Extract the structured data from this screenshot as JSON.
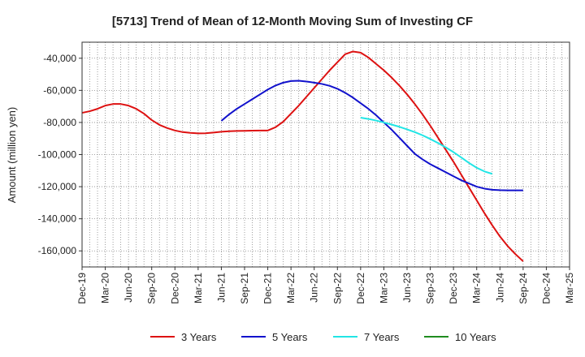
{
  "chart_data": {
    "type": "line",
    "title": "[5713]  Trend of Mean of 12-Month Moving Sum of Investing CF",
    "xlabel": "",
    "ylabel": "Amount (million yen)",
    "ylim": [
      -170000,
      -30000
    ],
    "yticks": [
      -40000,
      -60000,
      -80000,
      -100000,
      -120000,
      -140000,
      -160000
    ],
    "ytick_labels": [
      "-40,000",
      "-60,000",
      "-80,000",
      "-100,000",
      "-120,000",
      "-140,000",
      "-160,000"
    ],
    "xticks": [
      "Dec-19",
      "Mar-20",
      "Jun-20",
      "Sep-20",
      "Dec-20",
      "Mar-21",
      "Jun-21",
      "Sep-21",
      "Dec-21",
      "Mar-22",
      "Jun-22",
      "Sep-22",
      "Dec-22",
      "Mar-23",
      "Jun-23",
      "Sep-23",
      "Dec-23",
      "Mar-24",
      "Jun-24",
      "Sep-24",
      "Dec-24",
      "Mar-25"
    ],
    "grid": true,
    "legend_position": "bottom",
    "series": [
      {
        "name": "3 Years",
        "color": "#dd1111",
        "points": [
          [
            "Dec-19",
            -74000
          ],
          [
            "Jan-20",
            -73000
          ],
          [
            "Feb-20",
            -71500
          ],
          [
            "Mar-20",
            -69500
          ],
          [
            "Apr-20",
            -68500
          ],
          [
            "May-20",
            -68500
          ],
          [
            "Jun-20",
            -69500
          ],
          [
            "Jul-20",
            -71500
          ],
          [
            "Aug-20",
            -74500
          ],
          [
            "Sep-20",
            -78500
          ],
          [
            "Oct-20",
            -81500
          ],
          [
            "Nov-20",
            -83500
          ],
          [
            "Dec-20",
            -85000
          ],
          [
            "Jan-21",
            -86000
          ],
          [
            "Feb-21",
            -86500
          ],
          [
            "Mar-21",
            -86800
          ],
          [
            "Apr-21",
            -86700
          ],
          [
            "May-21",
            -86300
          ],
          [
            "Jun-21",
            -85800
          ],
          [
            "Jul-21",
            -85500
          ],
          [
            "Aug-21",
            -85300
          ],
          [
            "Sep-21",
            -85200
          ],
          [
            "Oct-21",
            -85100
          ],
          [
            "Nov-21",
            -85000
          ],
          [
            "Dec-21",
            -85000
          ],
          [
            "Jan-22",
            -83000
          ],
          [
            "Feb-22",
            -79500
          ],
          [
            "Mar-22",
            -74500
          ],
          [
            "Apr-22",
            -69500
          ],
          [
            "May-22",
            -64000
          ],
          [
            "Jun-22",
            -58500
          ],
          [
            "Jul-22",
            -53000
          ],
          [
            "Aug-22",
            -47500
          ],
          [
            "Sep-22",
            -42500
          ],
          [
            "Oct-22",
            -37500
          ],
          [
            "Nov-22",
            -35800
          ],
          [
            "Dec-22",
            -36500
          ],
          [
            "Jan-23",
            -39500
          ],
          [
            "Feb-23",
            -43500
          ],
          [
            "Mar-23",
            -47500
          ],
          [
            "Apr-23",
            -52000
          ],
          [
            "May-23",
            -57000
          ],
          [
            "Jun-23",
            -62500
          ],
          [
            "Jul-23",
            -68500
          ],
          [
            "Aug-23",
            -75000
          ],
          [
            "Sep-23",
            -82000
          ],
          [
            "Oct-23",
            -89500
          ],
          [
            "Nov-23",
            -97000
          ],
          [
            "Dec-23",
            -104500
          ],
          [
            "Jan-24",
            -112500
          ],
          [
            "Feb-24",
            -120500
          ],
          [
            "Mar-24",
            -128500
          ],
          [
            "Apr-24",
            -136500
          ],
          [
            "May-24",
            -144000
          ],
          [
            "Jun-24",
            -151000
          ],
          [
            "Jul-24",
            -157000
          ],
          [
            "Aug-24",
            -162000
          ],
          [
            "Sep-24",
            -166500
          ]
        ]
      },
      {
        "name": "5 Years",
        "color": "#1111cc",
        "points": [
          [
            "Jun-21",
            -79000
          ],
          [
            "Jul-21",
            -75000
          ],
          [
            "Aug-21",
            -71500
          ],
          [
            "Sep-21",
            -68500
          ],
          [
            "Oct-21",
            -65500
          ],
          [
            "Nov-21",
            -62500
          ],
          [
            "Dec-21",
            -59500
          ],
          [
            "Jan-22",
            -57000
          ],
          [
            "Feb-22",
            -55200
          ],
          [
            "Mar-22",
            -54200
          ],
          [
            "Apr-22",
            -54000
          ],
          [
            "May-22",
            -54500
          ],
          [
            "Jun-22",
            -55200
          ],
          [
            "Jul-22",
            -56000
          ],
          [
            "Aug-22",
            -57200
          ],
          [
            "Sep-22",
            -59000
          ],
          [
            "Oct-22",
            -61500
          ],
          [
            "Nov-22",
            -64500
          ],
          [
            "Dec-22",
            -68000
          ],
          [
            "Jan-23",
            -71500
          ],
          [
            "Feb-23",
            -75500
          ],
          [
            "Mar-23",
            -80000
          ],
          [
            "Apr-23",
            -84500
          ],
          [
            "May-23",
            -89500
          ],
          [
            "Jun-23",
            -94500
          ],
          [
            "Jul-23",
            -99500
          ],
          [
            "Aug-23",
            -103000
          ],
          [
            "Sep-23",
            -106000
          ],
          [
            "Oct-23",
            -108500
          ],
          [
            "Nov-23",
            -111000
          ],
          [
            "Dec-23",
            -113500
          ],
          [
            "Jan-24",
            -116000
          ],
          [
            "Feb-24",
            -118000
          ],
          [
            "Mar-24",
            -120000
          ],
          [
            "Apr-24",
            -121200
          ],
          [
            "May-24",
            -121900
          ],
          [
            "Jun-24",
            -122200
          ],
          [
            "Jul-24",
            -122300
          ],
          [
            "Aug-24",
            -122300
          ],
          [
            "Sep-24",
            -122300
          ]
        ]
      },
      {
        "name": "7 Years",
        "color": "#22e5e5",
        "points": [
          [
            "Dec-22",
            -77000
          ],
          [
            "Jan-23",
            -77800
          ],
          [
            "Feb-23",
            -78800
          ],
          [
            "Mar-23",
            -80000
          ],
          [
            "Apr-23",
            -81300
          ],
          [
            "May-23",
            -82700
          ],
          [
            "Jun-23",
            -84300
          ],
          [
            "Jul-23",
            -86000
          ],
          [
            "Aug-23",
            -88000
          ],
          [
            "Sep-23",
            -90300
          ],
          [
            "Oct-23",
            -92800
          ],
          [
            "Nov-23",
            -95500
          ],
          [
            "Dec-23",
            -98500
          ],
          [
            "Jan-24",
            -101800
          ],
          [
            "Feb-24",
            -105200
          ],
          [
            "Mar-24",
            -108200
          ],
          [
            "Apr-24",
            -110500
          ],
          [
            "May-24",
            -112000
          ]
        ]
      },
      {
        "name": "10 Years",
        "color": "#1f8c1f",
        "points": []
      }
    ]
  }
}
